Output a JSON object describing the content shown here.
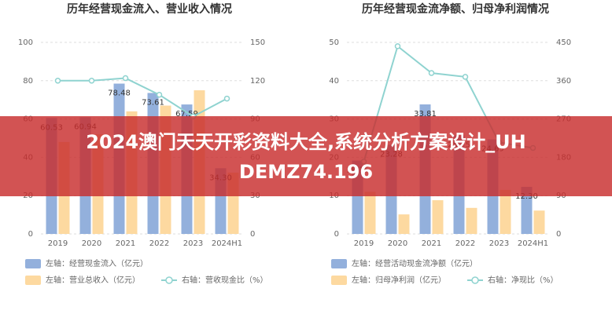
{
  "chart_data": [
    {
      "type": "bar",
      "title": "历年经营现金流入、营业收入情况",
      "categories": [
        "2019",
        "2020",
        "2021",
        "2022",
        "2023",
        "2024H1"
      ],
      "ylim": [
        0,
        100
      ],
      "yticks": [
        0,
        20,
        40,
        60,
        80,
        100
      ],
      "y2lim": [
        0,
        150
      ],
      "y2ticks": [
        0,
        30,
        60,
        90,
        120,
        150
      ],
      "grid": true,
      "series": [
        {
          "name": "左轴：经营现金流入（亿元）",
          "color": "#93b0dc",
          "values": [
            60.53,
            60.94,
            78.48,
            73.61,
            67.59,
            34.3
          ],
          "value_labels": [
            "60.53",
            "60.94",
            "78.48",
            "73.61",
            "67.59",
            "34.30"
          ]
        },
        {
          "name": "左轴：营业总收入（亿元）",
          "color": "#fdd9a0",
          "values": [
            48,
            52,
            64,
            67,
            75,
            32
          ]
        },
        {
          "name": "右轴：营收现金比（%）",
          "color": "#8fd3d0",
          "axis": "y2",
          "type": "line",
          "values": [
            120,
            120,
            122,
            109,
            92,
            106
          ]
        }
      ]
    },
    {
      "type": "bar",
      "title": "历年经营现金流净额、归母净利润情况",
      "categories": [
        "2019",
        "2020",
        "2021",
        "2022",
        "2023",
        "2024H1"
      ],
      "ylim": [
        0,
        50
      ],
      "yticks": [
        0,
        10,
        20,
        30,
        40,
        50
      ],
      "y2lim": [
        0,
        450
      ],
      "y2ticks": [
        0,
        90,
        180,
        270,
        360,
        450
      ],
      "grid": true,
      "series": [
        {
          "name": "左轴：经营活动现金流净额（亿元）",
          "color": "#93b0dc",
          "values": [
            19.15,
            23.28,
            33.81,
            25.75,
            24.69,
            12.3
          ],
          "value_labels": [
            "19.15",
            "23.28",
            "33.81",
            "25.75",
            "24.69",
            "12.30"
          ]
        },
        {
          "name": "左轴：归母净利润（亿元）",
          "color": "#fdd9a0",
          "values": [
            11,
            5.1,
            8.8,
            6.8,
            11.5,
            6.1
          ]
        },
        {
          "name": "右轴：净现比（%）",
          "color": "#8fd3d0",
          "axis": "y2",
          "type": "line",
          "values": [
            170,
            441,
            378,
            369,
            215,
            202
          ]
        }
      ]
    }
  ],
  "banner": {
    "lines": [
      "2024澳门天天开彩资料大全,系统分析方案设计_UH",
      "DEMZ74.196"
    ]
  }
}
